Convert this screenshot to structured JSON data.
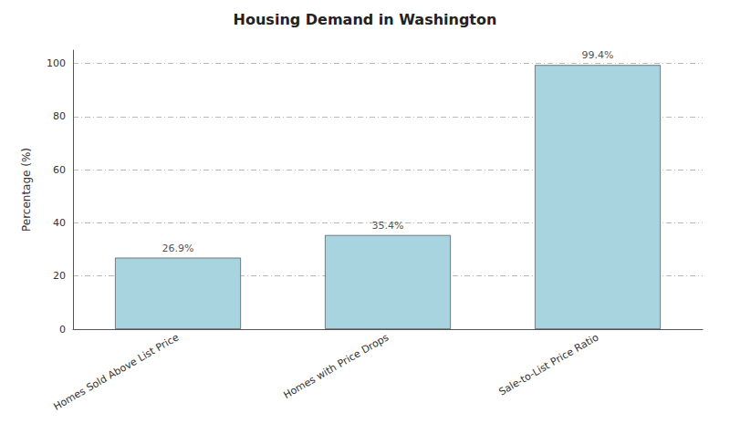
{
  "chart_data": {
    "type": "bar",
    "title": "Housing Demand in Washington",
    "categories": [
      "Homes Sold Above List Price",
      "Homes with Price Drops",
      "Sale-to-List Price Ratio"
    ],
    "values": [
      26.9,
      35.4,
      99.4
    ],
    "value_labels": [
      "26.9%",
      "35.4%",
      "99.4%"
    ],
    "data_labels": true,
    "color": "#a8d4e0",
    "ylabel": "Percentage (%)",
    "ylim": [
      0,
      105
    ],
    "yticks": [
      0,
      20,
      40,
      60,
      80,
      100
    ],
    "grid": true
  }
}
